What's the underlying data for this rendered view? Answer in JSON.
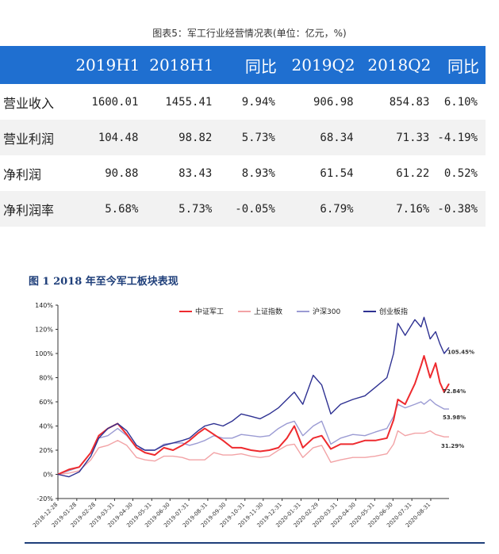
{
  "table": {
    "title": "图表5：军工行业经营情况表(单位：亿元，%)",
    "header": [
      "",
      "2019H1",
      "2018H1",
      "同比",
      "2019Q2",
      "2018Q2",
      "同比"
    ],
    "rows": [
      [
        "营业收入",
        "1600.01",
        "1455.41",
        "9.94%",
        "906.98",
        "854.83",
        "6.10%"
      ],
      [
        "营业利润",
        "104.48",
        "98.82",
        "5.73%",
        "68.34",
        "71.33",
        "-4.19%"
      ],
      [
        "净利润",
        "90.88",
        "83.43",
        "8.93%",
        "61.54",
        "61.22",
        "0.52%"
      ],
      [
        "净利润率",
        "5.68%",
        "5.73%",
        "-0.05%",
        "6.79%",
        "7.16%",
        "-0.38%"
      ]
    ],
    "colors": {
      "header_bg": "#1f6fd0",
      "alt_row_bg": "#f2f2f2"
    }
  },
  "chart_data": {
    "type": "line",
    "title": "图 1 2018 年至今军工板块表现",
    "xlabel": "",
    "ylabel": "",
    "ylim": [
      -20,
      140
    ],
    "yticks": [
      -20,
      0,
      20,
      40,
      60,
      80,
      100,
      120,
      140
    ],
    "ytick_labels": [
      "-20%",
      "0%",
      "20%",
      "40%",
      "60%",
      "80%",
      "100%",
      "120%",
      "140%"
    ],
    "xlim": [
      "2018-12-28",
      "2020-09-30"
    ],
    "x_tick_labels": [
      "2018-12-28",
      "2019-01-28",
      "2019-02-28",
      "2019-03-31",
      "2019-04-30",
      "2019-05-31",
      "2019-06-30",
      "2019-07-31",
      "2019-08-31",
      "2019-09-30",
      "2019-10-31",
      "2019-11-30",
      "2019-12-31",
      "2020-01-31",
      "2020-02-29",
      "2020-03-31",
      "2020-04-30",
      "2020-05-31",
      "2020-06-30",
      "2020-07-31",
      "2020-08-31"
    ],
    "legend_position": "top-right",
    "grid": false,
    "series": [
      {
        "name": "中证军工",
        "color": "#ee2a2e",
        "end_label": "72.84%",
        "points": [
          [
            "2018-12-28",
            0
          ],
          [
            "2019-01-15",
            4
          ],
          [
            "2019-02-01",
            6
          ],
          [
            "2019-02-20",
            18
          ],
          [
            "2019-03-05",
            32
          ],
          [
            "2019-03-20",
            38
          ],
          [
            "2019-04-05",
            42
          ],
          [
            "2019-04-20",
            33
          ],
          [
            "2019-05-06",
            22
          ],
          [
            "2019-05-20",
            18
          ],
          [
            "2019-06-05",
            16
          ],
          [
            "2019-06-20",
            22
          ],
          [
            "2019-07-05",
            20
          ],
          [
            "2019-07-20",
            24
          ],
          [
            "2019-08-01",
            28
          ],
          [
            "2019-08-15",
            34
          ],
          [
            "2019-08-26",
            38
          ],
          [
            "2019-09-10",
            33
          ],
          [
            "2019-09-25",
            28
          ],
          [
            "2019-10-10",
            22
          ],
          [
            "2019-10-25",
            22
          ],
          [
            "2019-11-10",
            20
          ],
          [
            "2019-11-25",
            19
          ],
          [
            "2019-12-10",
            20
          ],
          [
            "2019-12-25",
            22
          ],
          [
            "2020-01-08",
            30
          ],
          [
            "2020-01-20",
            40
          ],
          [
            "2020-02-03",
            22
          ],
          [
            "2020-02-20",
            30
          ],
          [
            "2020-03-05",
            32
          ],
          [
            "2020-03-20",
            21
          ],
          [
            "2020-04-05",
            25
          ],
          [
            "2020-04-25",
            25
          ],
          [
            "2020-05-15",
            28
          ],
          [
            "2020-06-01",
            28
          ],
          [
            "2020-06-20",
            30
          ],
          [
            "2020-07-01",
            45
          ],
          [
            "2020-07-08",
            62
          ],
          [
            "2020-07-20",
            58
          ],
          [
            "2020-08-05",
            75
          ],
          [
            "2020-08-15",
            90
          ],
          [
            "2020-08-20",
            98
          ],
          [
            "2020-08-30",
            80
          ],
          [
            "2020-09-08",
            92
          ],
          [
            "2020-09-15",
            76
          ],
          [
            "2020-09-22",
            68
          ],
          [
            "2020-09-30",
            75
          ]
        ]
      },
      {
        "name": "上证指数",
        "color": "#f2a3a6",
        "end_label": "31.29%",
        "points": [
          [
            "2018-12-28",
            0
          ],
          [
            "2019-01-15",
            1
          ],
          [
            "2019-02-01",
            3
          ],
          [
            "2019-02-20",
            12
          ],
          [
            "2019-03-05",
            22
          ],
          [
            "2019-03-20",
            24
          ],
          [
            "2019-04-05",
            28
          ],
          [
            "2019-04-20",
            24
          ],
          [
            "2019-05-06",
            14
          ],
          [
            "2019-05-20",
            12
          ],
          [
            "2019-06-05",
            11
          ],
          [
            "2019-06-20",
            15
          ],
          [
            "2019-07-05",
            15
          ],
          [
            "2019-07-20",
            14
          ],
          [
            "2019-08-01",
            12
          ],
          [
            "2019-08-15",
            12
          ],
          [
            "2019-08-26",
            12
          ],
          [
            "2019-09-10",
            18
          ],
          [
            "2019-09-25",
            16
          ],
          [
            "2019-10-10",
            16
          ],
          [
            "2019-10-25",
            17
          ],
          [
            "2019-11-10",
            15
          ],
          [
            "2019-11-25",
            14
          ],
          [
            "2019-12-10",
            15
          ],
          [
            "2019-12-25",
            20
          ],
          [
            "2020-01-08",
            24
          ],
          [
            "2020-01-20",
            25
          ],
          [
            "2020-02-03",
            14
          ],
          [
            "2020-02-20",
            22
          ],
          [
            "2020-03-05",
            24
          ],
          [
            "2020-03-20",
            10
          ],
          [
            "2020-04-05",
            12
          ],
          [
            "2020-04-25",
            14
          ],
          [
            "2020-05-15",
            14
          ],
          [
            "2020-06-01",
            15
          ],
          [
            "2020-06-20",
            17
          ],
          [
            "2020-07-01",
            25
          ],
          [
            "2020-07-08",
            36
          ],
          [
            "2020-07-20",
            32
          ],
          [
            "2020-08-05",
            34
          ],
          [
            "2020-08-15",
            34
          ],
          [
            "2020-08-20",
            34
          ],
          [
            "2020-08-30",
            36
          ],
          [
            "2020-09-08",
            33
          ],
          [
            "2020-09-15",
            32
          ],
          [
            "2020-09-22",
            31
          ],
          [
            "2020-09-30",
            31
          ]
        ]
      },
      {
        "name": "沪深300",
        "color": "#9b9bd3",
        "end_label": "53.98%",
        "points": [
          [
            "2018-12-28",
            0
          ],
          [
            "2019-01-15",
            3
          ],
          [
            "2019-02-01",
            6
          ],
          [
            "2019-02-20",
            18
          ],
          [
            "2019-03-05",
            30
          ],
          [
            "2019-03-20",
            32
          ],
          [
            "2019-04-05",
            38
          ],
          [
            "2019-04-20",
            32
          ],
          [
            "2019-05-06",
            22
          ],
          [
            "2019-05-20",
            20
          ],
          [
            "2019-06-05",
            20
          ],
          [
            "2019-06-20",
            25
          ],
          [
            "2019-07-05",
            26
          ],
          [
            "2019-07-20",
            26
          ],
          [
            "2019-08-01",
            24
          ],
          [
            "2019-08-15",
            26
          ],
          [
            "2019-08-26",
            28
          ],
          [
            "2019-09-10",
            32
          ],
          [
            "2019-09-25",
            30
          ],
          [
            "2019-10-10",
            30
          ],
          [
            "2019-10-25",
            33
          ],
          [
            "2019-11-10",
            32
          ],
          [
            "2019-11-25",
            31
          ],
          [
            "2019-12-10",
            32
          ],
          [
            "2019-12-25",
            38
          ],
          [
            "2020-01-08",
            42
          ],
          [
            "2020-01-20",
            44
          ],
          [
            "2020-02-03",
            32
          ],
          [
            "2020-02-20",
            40
          ],
          [
            "2020-03-05",
            44
          ],
          [
            "2020-03-20",
            25
          ],
          [
            "2020-04-05",
            30
          ],
          [
            "2020-04-25",
            33
          ],
          [
            "2020-05-15",
            32
          ],
          [
            "2020-06-01",
            35
          ],
          [
            "2020-06-20",
            38
          ],
          [
            "2020-07-01",
            48
          ],
          [
            "2020-07-08",
            58
          ],
          [
            "2020-07-20",
            55
          ],
          [
            "2020-08-05",
            58
          ],
          [
            "2020-08-15",
            60
          ],
          [
            "2020-08-20",
            58
          ],
          [
            "2020-08-30",
            62
          ],
          [
            "2020-09-08",
            58
          ],
          [
            "2020-09-15",
            56
          ],
          [
            "2020-09-22",
            54
          ],
          [
            "2020-09-30",
            54
          ]
        ]
      },
      {
        "name": "创业板指",
        "color": "#2e3192",
        "end_label": "105.45%",
        "points": [
          [
            "2018-12-28",
            0
          ],
          [
            "2019-01-15",
            -2
          ],
          [
            "2019-02-01",
            2
          ],
          [
            "2019-02-20",
            15
          ],
          [
            "2019-03-05",
            30
          ],
          [
            "2019-03-20",
            38
          ],
          [
            "2019-04-05",
            42
          ],
          [
            "2019-04-20",
            36
          ],
          [
            "2019-05-06",
            24
          ],
          [
            "2019-05-20",
            20
          ],
          [
            "2019-06-05",
            20
          ],
          [
            "2019-06-20",
            24
          ],
          [
            "2019-07-05",
            26
          ],
          [
            "2019-07-20",
            28
          ],
          [
            "2019-08-01",
            30
          ],
          [
            "2019-08-15",
            36
          ],
          [
            "2019-08-26",
            40
          ],
          [
            "2019-09-10",
            42
          ],
          [
            "2019-09-25",
            40
          ],
          [
            "2019-10-10",
            44
          ],
          [
            "2019-10-25",
            50
          ],
          [
            "2019-11-10",
            48
          ],
          [
            "2019-11-25",
            46
          ],
          [
            "2019-12-10",
            50
          ],
          [
            "2019-12-25",
            55
          ],
          [
            "2020-01-08",
            62
          ],
          [
            "2020-01-20",
            68
          ],
          [
            "2020-02-03",
            58
          ],
          [
            "2020-02-20",
            82
          ],
          [
            "2020-03-05",
            74
          ],
          [
            "2020-03-20",
            50
          ],
          [
            "2020-04-05",
            58
          ],
          [
            "2020-04-25",
            62
          ],
          [
            "2020-05-15",
            65
          ],
          [
            "2020-06-01",
            72
          ],
          [
            "2020-06-20",
            80
          ],
          [
            "2020-07-01",
            100
          ],
          [
            "2020-07-08",
            125
          ],
          [
            "2020-07-20",
            115
          ],
          [
            "2020-08-05",
            128
          ],
          [
            "2020-08-15",
            122
          ],
          [
            "2020-08-20",
            130
          ],
          [
            "2020-08-30",
            112
          ],
          [
            "2020-09-08",
            118
          ],
          [
            "2020-09-15",
            108
          ],
          [
            "2020-09-22",
            100
          ],
          [
            "2020-09-30",
            105
          ]
        ]
      }
    ]
  }
}
